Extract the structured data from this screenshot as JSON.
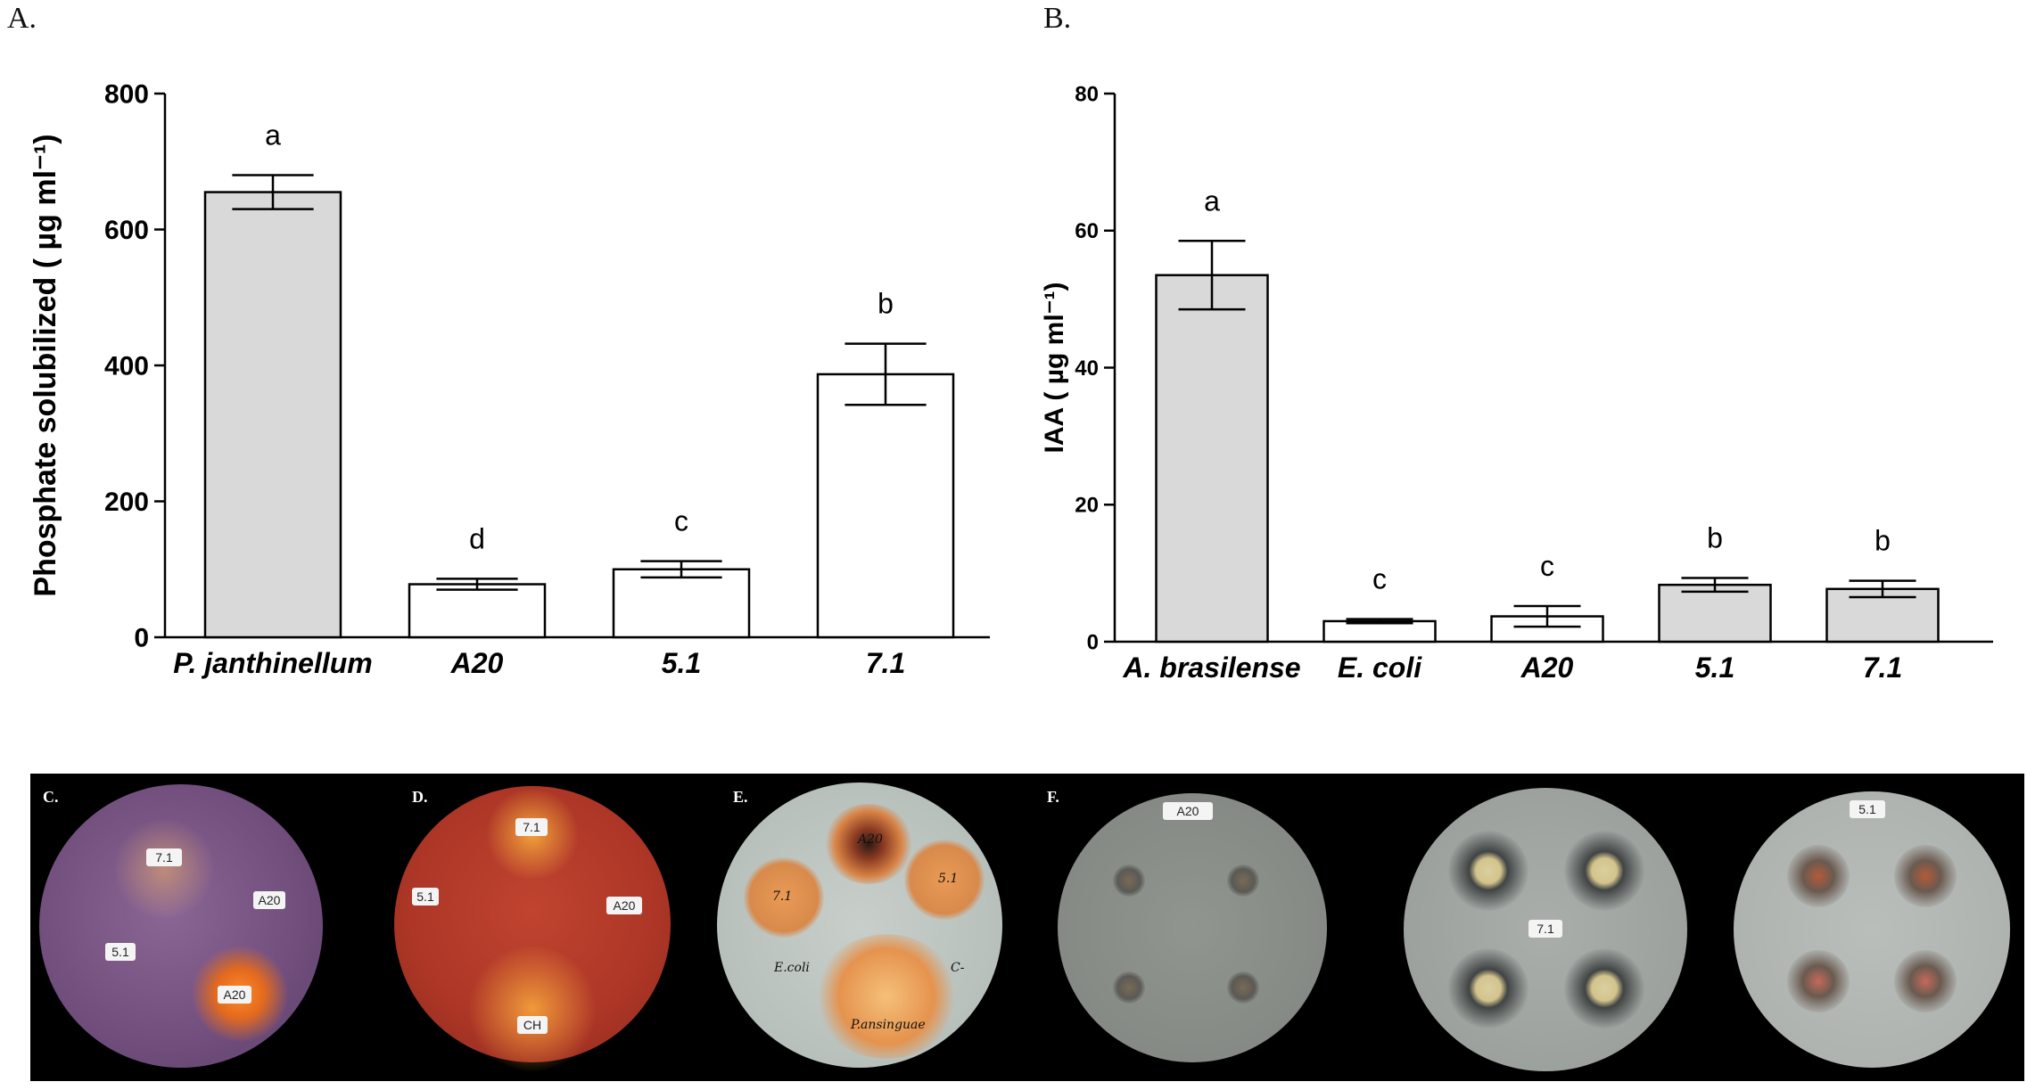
{
  "chart_data": [
    {
      "type": "bar",
      "panel": "A.",
      "ylabel": "Phosphate solubilized ( µg ml⁻¹)",
      "ylim": [
        0,
        800
      ],
      "yticks": [
        0,
        200,
        400,
        600,
        800
      ],
      "categories": [
        "P. janthinellum",
        "A20",
        "5.1",
        "7.1"
      ],
      "values": [
        655,
        78,
        100,
        387
      ],
      "errors": [
        25,
        8,
        12,
        45
      ],
      "letters": [
        "a",
        "d",
        "c",
        "b"
      ],
      "bar_colors": [
        "#d9d9d9",
        "#ffffff",
        "#ffffff",
        "#ffffff"
      ]
    },
    {
      "type": "bar",
      "panel": "B.",
      "ylabel": "IAA ( µg ml⁻¹)",
      "ylim": [
        0,
        80
      ],
      "yticks": [
        0,
        20,
        40,
        60,
        80
      ],
      "categories": [
        "A. brasilense",
        "E. coli",
        "A20",
        "5.1",
        "7.1"
      ],
      "values": [
        53.5,
        3.0,
        3.7,
        8.3,
        7.7
      ],
      "errors": [
        5.0,
        0.3,
        1.5,
        1.0,
        1.2
      ],
      "letters": [
        "a",
        "c",
        "c",
        "b",
        "b"
      ],
      "bar_colors": [
        "#d9d9d9",
        "#ffffff",
        "#ffffff",
        "#d9d9d9",
        "#d9d9d9"
      ]
    }
  ],
  "photos": {
    "labels": [
      "C.",
      "D.",
      "E.",
      "F."
    ],
    "dish_c_tags": [
      "7.1",
      "A20",
      "5.1",
      "A20"
    ],
    "dish_d_tags": [
      "7.1",
      "5.1",
      "A20",
      "CH"
    ],
    "dish_e_tags": [
      "A20",
      "7.1",
      "5.1"
    ],
    "dish_e_scrawl": [
      "E.coli",
      "C-",
      "P.ansinguae"
    ],
    "dish_f_tags": [
      "A20",
      "7.1",
      "5.1"
    ],
    "colors": {
      "dish_c": "#7b4f86",
      "dish_d": "#b33a2a",
      "dish_e": "#c9cfcc",
      "dish_f": "#8f9492"
    }
  }
}
